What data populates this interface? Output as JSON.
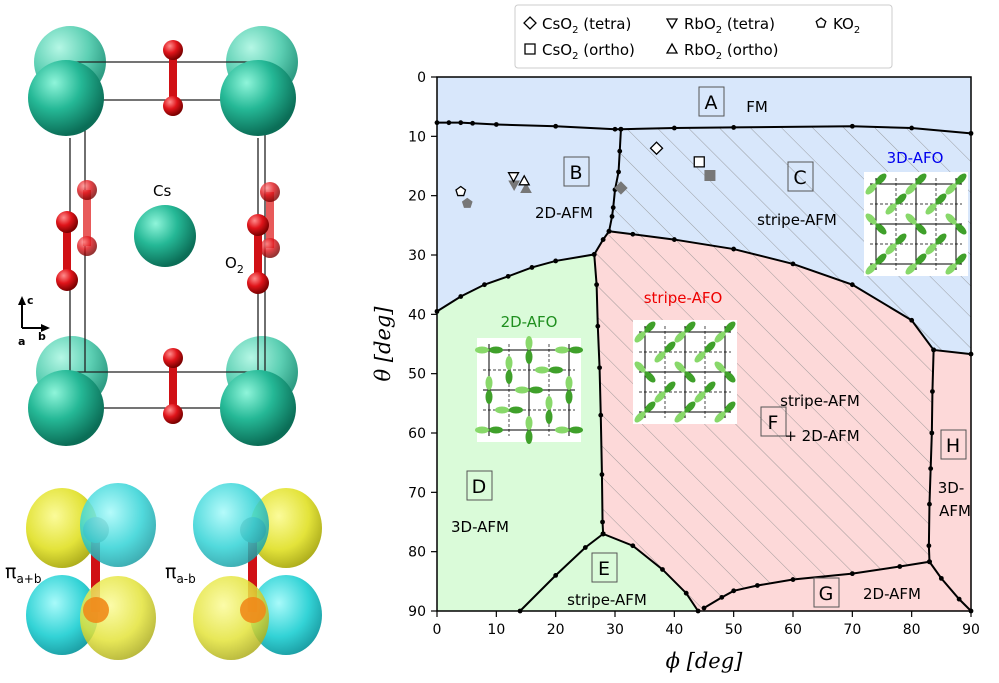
{
  "crystal": {
    "atom_cs": "Cs",
    "atom_o2": "O",
    "atom_o2_sub": "2",
    "axis_c": "c",
    "axis_b": "b",
    "axis_a": "a",
    "orbital_plus": "π",
    "orbital_plus_sub": "a+b",
    "orbital_minus": "π",
    "orbital_minus_sub": "a-b",
    "colors": {
      "cs": "#20a88a",
      "o": "#e0141a",
      "yellow": "#e8e84a",
      "cyan": "#3ad6d6"
    }
  },
  "legend": {
    "items": [
      {
        "marker": "diamond",
        "label": "CsO",
        "sub": "2",
        "suffix": " (tetra)"
      },
      {
        "marker": "triangle-down",
        "label": "RbO",
        "sub": "2",
        "suffix": " (tetra)"
      },
      {
        "marker": "pentagon",
        "label": "KO",
        "sub": "2",
        "suffix": ""
      },
      {
        "marker": "square",
        "label": "CsO",
        "sub": "2",
        "suffix": " (ortho)"
      },
      {
        "marker": "triangle-up",
        "label": "RbO",
        "sub": "2",
        "suffix": " (ortho)"
      }
    ]
  },
  "chart_data": {
    "type": "phase-diagram",
    "xlabel": "ϕ [deg]",
    "ylabel": "θ [deg]",
    "xlim": [
      0,
      90
    ],
    "ylim": [
      90,
      0
    ],
    "xticks": [
      "0",
      "10",
      "20",
      "30",
      "40",
      "50",
      "60",
      "70",
      "80",
      "90"
    ],
    "yticks": [
      "0",
      "10",
      "20",
      "30",
      "40",
      "50",
      "60",
      "70",
      "80",
      "90"
    ],
    "colors": {
      "blue": "#d8e7fb",
      "red": "#fdd9d9",
      "green": "#dafbd9",
      "hatch": "#888888"
    },
    "boundaries": [
      {
        "name": "A-BC",
        "points": [
          [
            0,
            7.7
          ],
          [
            2,
            7.7
          ],
          [
            4,
            7.7
          ],
          [
            6,
            7.8
          ],
          [
            10,
            8.0
          ],
          [
            20,
            8.3
          ],
          [
            30,
            8.8
          ],
          [
            31,
            8.8
          ],
          [
            40,
            8.6
          ],
          [
            50,
            8.5
          ],
          [
            70,
            8.3
          ],
          [
            80,
            8.6
          ],
          [
            90,
            9.5
          ]
        ]
      },
      {
        "name": "B-C",
        "points": [
          [
            31,
            8.8
          ],
          [
            30.8,
            12.5
          ],
          [
            30.6,
            16
          ],
          [
            30,
            19
          ],
          [
            29.7,
            22
          ],
          [
            29.5,
            23.5
          ],
          [
            29,
            26
          ]
        ]
      },
      {
        "name": "BC-F",
        "points": [
          [
            29,
            26
          ],
          [
            33,
            26.5
          ],
          [
            40,
            27.4
          ],
          [
            50,
            29
          ],
          [
            60,
            31.5
          ],
          [
            70,
            35
          ],
          [
            80,
            41
          ],
          [
            83.7,
            46
          ],
          [
            90,
            46.7
          ]
        ]
      },
      {
        "name": "B-D",
        "points": [
          [
            0,
            39.5
          ],
          [
            4,
            37
          ],
          [
            8,
            35
          ],
          [
            12,
            33.6
          ],
          [
            16,
            32.1
          ],
          [
            20,
            31
          ],
          [
            26.5,
            29.9
          ],
          [
            28,
            27.4
          ],
          [
            29,
            26
          ]
        ]
      },
      {
        "name": "D-F",
        "points": [
          [
            26.5,
            29.9
          ],
          [
            26.9,
            35
          ],
          [
            27.1,
            42
          ],
          [
            27.4,
            49
          ],
          [
            27.6,
            57
          ],
          [
            27.8,
            67
          ],
          [
            27.9,
            75
          ],
          [
            28,
            77
          ]
        ]
      },
      {
        "name": "D-E",
        "points": [
          [
            14,
            90
          ],
          [
            20,
            84
          ],
          [
            25,
            79.3
          ],
          [
            28,
            77
          ]
        ]
      },
      {
        "name": "E-F",
        "points": [
          [
            28,
            77
          ],
          [
            33,
            79
          ],
          [
            38,
            83
          ],
          [
            42,
            87
          ],
          [
            44,
            90
          ]
        ]
      },
      {
        "name": "F-G",
        "points": [
          [
            45,
            89.5
          ],
          [
            48,
            87.7
          ],
          [
            50,
            86.6
          ],
          [
            54,
            85.7
          ],
          [
            60,
            84.7
          ],
          [
            70,
            83.7
          ],
          [
            78,
            82.5
          ],
          [
            83,
            81.7
          ]
        ]
      },
      {
        "name": "F-H",
        "points": [
          [
            83.7,
            46
          ],
          [
            83.5,
            53
          ],
          [
            83.4,
            60
          ],
          [
            83.2,
            66
          ],
          [
            83,
            72
          ],
          [
            82.9,
            79
          ],
          [
            83,
            81.7
          ]
        ]
      },
      {
        "name": "G-H",
        "points": [
          [
            83,
            81.7
          ],
          [
            85,
            84.5
          ],
          [
            88,
            88
          ],
          [
            90,
            90
          ]
        ]
      }
    ],
    "regions": [
      {
        "label": "A",
        "phase": "FM"
      },
      {
        "label": "B",
        "phase": "2D-AFM"
      },
      {
        "label": "C",
        "phase": "stripe-AFM",
        "orbital": "3D-AFO"
      },
      {
        "label": "D",
        "phase": "3D-AFM",
        "orbital": "2D-AFO"
      },
      {
        "label": "E",
        "phase": "stripe-AFM"
      },
      {
        "label": "F",
        "phase": "stripe-AFM",
        "phase2": "+ 2D-AFM",
        "orbital": "stripe-AFO"
      },
      {
        "label": "G",
        "phase": "2D-AFM"
      },
      {
        "label": "H",
        "phase": "3D-",
        "phase2": "AFM"
      }
    ],
    "materials": [
      {
        "name": "CsO2 (tetra)",
        "marker": "diamond",
        "open": [
          37,
          12
        ],
        "filled": [
          31,
          18.7
        ]
      },
      {
        "name": "CsO2 (ortho)",
        "marker": "square",
        "open": [
          44.2,
          14.3
        ],
        "filled": [
          46,
          16.6
        ]
      },
      {
        "name": "RbO2 (tetra)",
        "marker": "triangle-down",
        "open": [
          12.9,
          16.8
        ],
        "filled": [
          13,
          18.2
        ]
      },
      {
        "name": "RbO2 (ortho)",
        "marker": "triangle-up",
        "open": [
          14.7,
          17.5
        ],
        "filled": [
          15,
          18.8
        ]
      },
      {
        "name": "KO2",
        "marker": "pentagon",
        "open": [
          4,
          19.3
        ],
        "filled": [
          5.1,
          21.3
        ]
      }
    ]
  }
}
